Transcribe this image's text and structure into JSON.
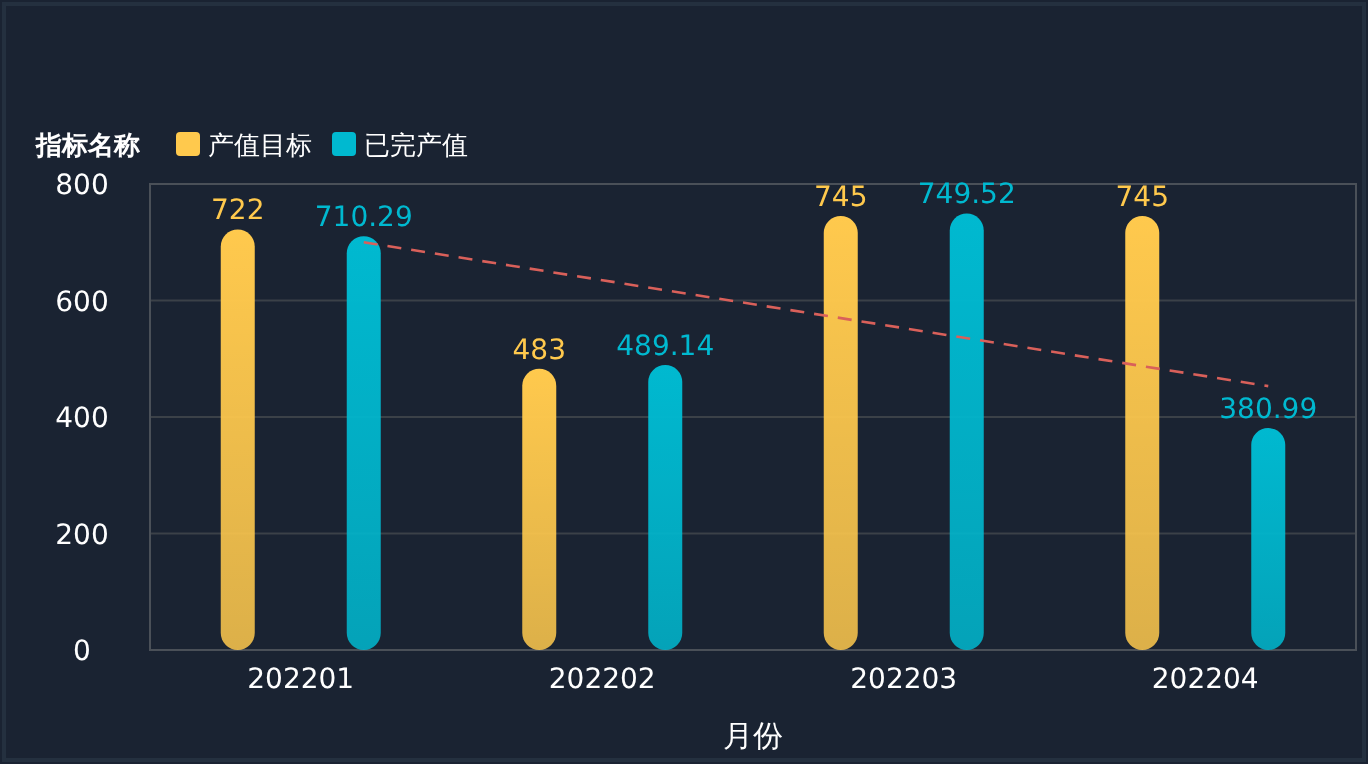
{
  "chart_data": {
    "type": "bar",
    "xlabel": "月份",
    "legend_title": "指标名称",
    "legend": "top left",
    "grid": "y",
    "categories": [
      "202201",
      "202202",
      "202203",
      "202204"
    ],
    "ylim": [
      0,
      800
    ],
    "yticks": [
      0,
      200,
      400,
      600,
      800
    ],
    "series": [
      {
        "name": "产值目标",
        "color": "#ffc94d",
        "values": [
          722,
          483,
          745,
          745
        ],
        "value_labels": [
          "722",
          "483",
          "745",
          "745"
        ]
      },
      {
        "name": "已完产值",
        "color": "#00b9d0",
        "values": [
          710.29,
          489.14,
          749.52,
          380.99
        ],
        "value_labels": [
          "710.29",
          "489.14",
          "749.52",
          "380.99"
        ]
      },
      {
        "type": "line",
        "color": "#d9605a",
        "line_style": "dashed",
        "x": [
          "202201",
          "202204"
        ],
        "values": [
          700,
          453
        ]
      }
    ]
  }
}
